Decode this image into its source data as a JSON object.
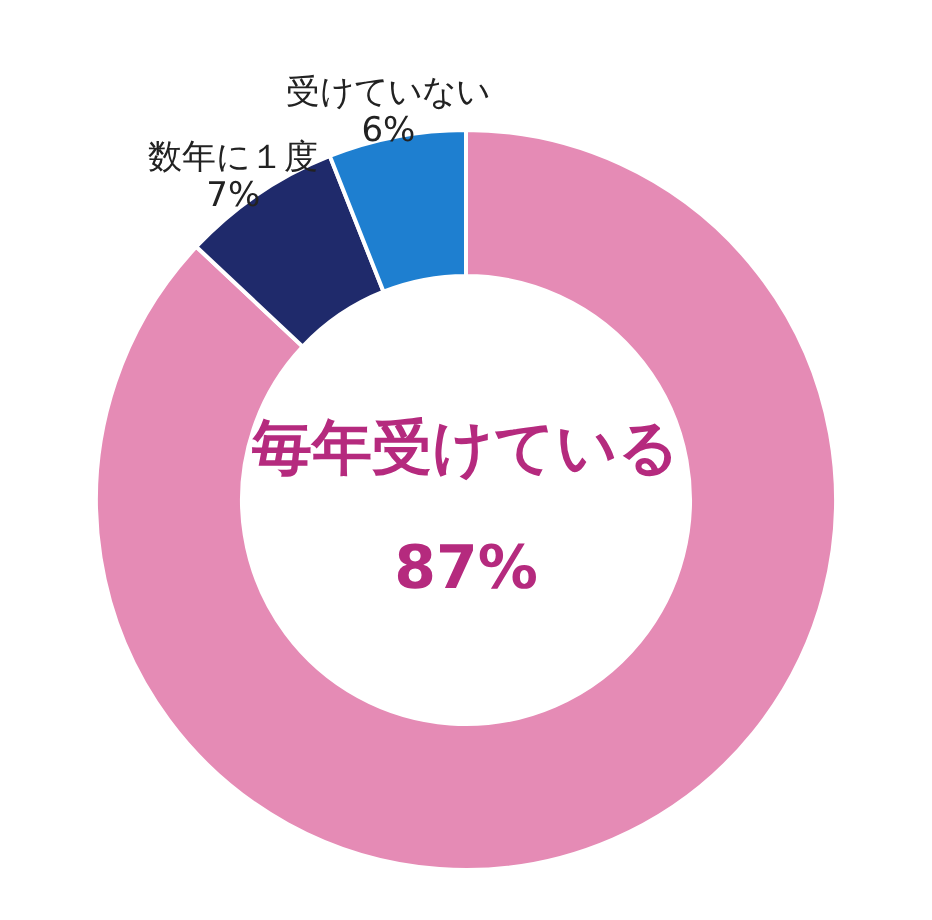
{
  "chart_data": {
    "type": "donut",
    "categories": [
      "毎年受けている",
      "数年に１度",
      "受けていない"
    ],
    "values": [
      87,
      7,
      6
    ],
    "value_labels": [
      "87%",
      "7%",
      "6%"
    ],
    "colors": [
      "#e58bb5",
      "#1f2a6b",
      "#1e7fd0"
    ],
    "legend": false
  }
}
